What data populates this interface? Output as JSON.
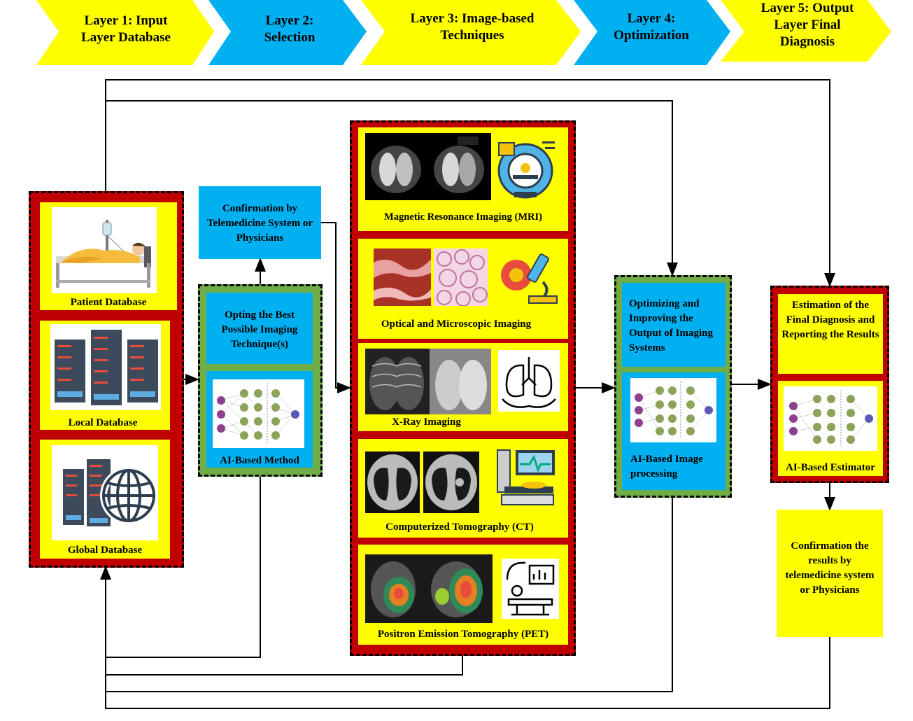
{
  "layers": [
    {
      "label": "Layer 1: Input Layer Database",
      "color": "#ffff00"
    },
    {
      "label": "Layer 2: Selection",
      "color": "#00b0f0"
    },
    {
      "label": "Layer 3: Image-based Techniques",
      "color": "#ffff00"
    },
    {
      "label": "Layer 4: Optimization",
      "color": "#00b0f0"
    },
    {
      "label": "Layer 5: Output Layer Final Diagnosis",
      "color": "#ffff00"
    }
  ],
  "layer1": {
    "patient_db": "Patient Database",
    "local_db": "Local Database",
    "global_db": "Global Database"
  },
  "layer2": {
    "confirmation": "Confirmation by Telemedicine System or Physicians",
    "opting": "Opting the Best Possible Imaging Technique(s)",
    "ai_method": "AI-Based Method"
  },
  "layer3": {
    "mri": "Magnetic Resonance Imaging (MRI)",
    "optical": "Optical and Microscopic Imaging",
    "xray": "X-Ray Imaging",
    "ct": "Computerized Tomography (CT)",
    "pet": "Positron Emission Tomography (PET)"
  },
  "layer4": {
    "optimizing": "Optimizing and Improving the Output of Imaging Systems",
    "ai_processing": "AI-Based Image processing"
  },
  "layer5": {
    "estimation": "Estimation of the Final Diagnosis and Reporting the Results",
    "ai_estimator": "AI-Based Estimator",
    "confirmation": "Confirmation the results by telemedicine system or Physicians"
  },
  "colors": {
    "yellow": "#ffff00",
    "cyan": "#00b0f0",
    "red": "#c00000",
    "green": "#70ad47"
  },
  "icons": [
    "hospital-bed-icon",
    "server-rack-icon",
    "global-server-icon",
    "mri-scanner-icon",
    "microscope-icon",
    "lungs-icon",
    "ct-monitor-icon",
    "pet-scanner-icon",
    "neural-network-icon"
  ]
}
